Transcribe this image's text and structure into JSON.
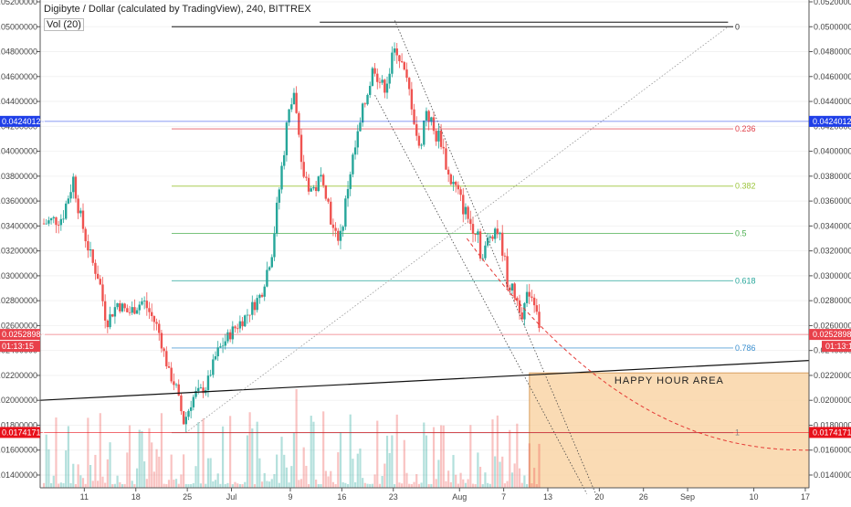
{
  "header": {
    "title": "Digibyte / Dollar (calculated by TradingView), 240, BITTREX",
    "volume_label": "Vol (20)"
  },
  "chart_data": {
    "type": "candlestick",
    "y_ticks": [
      "0.05200000",
      "0.05000000",
      "0.04800000",
      "0.04600000",
      "0.04400000",
      "0.04200000",
      "0.04000000",
      "0.03800000",
      "0.03600000",
      "0.03400000",
      "0.03200000",
      "0.03000000",
      "0.02800000",
      "0.02600000",
      "0.02400000",
      "0.02200000",
      "0.02000000",
      "0.01800000",
      "0.01600000",
      "0.01400000"
    ],
    "y_values": [
      0.052,
      0.05,
      0.048,
      0.046,
      0.044,
      0.042,
      0.04,
      0.038,
      0.036,
      0.034,
      0.032,
      0.03,
      0.028,
      0.026,
      0.024,
      0.022,
      0.02,
      0.018,
      0.016,
      0.014
    ],
    "x_ticks": [
      {
        "label": "11",
        "v": 11
      },
      {
        "label": "18",
        "v": 18
      },
      {
        "label": "25",
        "v": 25
      },
      {
        "label": "Jul",
        "v": 31
      },
      {
        "label": "9",
        "v": 39
      },
      {
        "label": "16",
        "v": 46
      },
      {
        "label": "23",
        "v": 53
      },
      {
        "label": "Aug",
        "v": 62
      },
      {
        "label": "7",
        "v": 68
      },
      {
        "label": "13",
        "v": 74
      },
      {
        "label": "20",
        "v": 81
      },
      {
        "label": "26",
        "v": 87
      },
      {
        "label": "Sep",
        "v": 93
      },
      {
        "label": "10",
        "v": 102
      },
      {
        "label": "17",
        "v": 109
      }
    ],
    "price_markers": [
      {
        "value": 0.04240128,
        "label": "0.04240128",
        "color": "#1f3fe8",
        "side": "both"
      },
      {
        "value": 0.02528989,
        "label": "0.02528989",
        "color": "#e8404a",
        "side": "both"
      },
      {
        "value": 0.01741712,
        "label": "0.01741712",
        "color": "#e8101a",
        "side": "both"
      }
    ],
    "countdown": "01:13:15",
    "fib_levels": [
      {
        "label": "0",
        "value": 0.05,
        "color": "#333333"
      },
      {
        "label": "0.236",
        "value": 0.0418,
        "color": "#e0404a"
      },
      {
        "label": "0.382",
        "value": 0.0372,
        "color": "#9bc43a"
      },
      {
        "label": "0.5",
        "value": 0.0334,
        "color": "#4caf50"
      },
      {
        "label": "0.618",
        "value": 0.0296,
        "color": "#26a69a"
      },
      {
        "label": "0.786",
        "value": 0.0242,
        "color": "#3a8fd0"
      },
      {
        "label": "1",
        "value": 0.0174,
        "color": "#888888"
      }
    ],
    "zone": {
      "label": "HAPPY HOUR AREA",
      "top": 0.0222,
      "bottom": 0.0122,
      "x_start": 71.5,
      "x_end": 109,
      "color": "#f9d5a7"
    },
    "current_price": 0.02528989,
    "ylim": [
      0.0125,
      0.0525
    ],
    "xlim": [
      5,
      109.5
    ]
  }
}
